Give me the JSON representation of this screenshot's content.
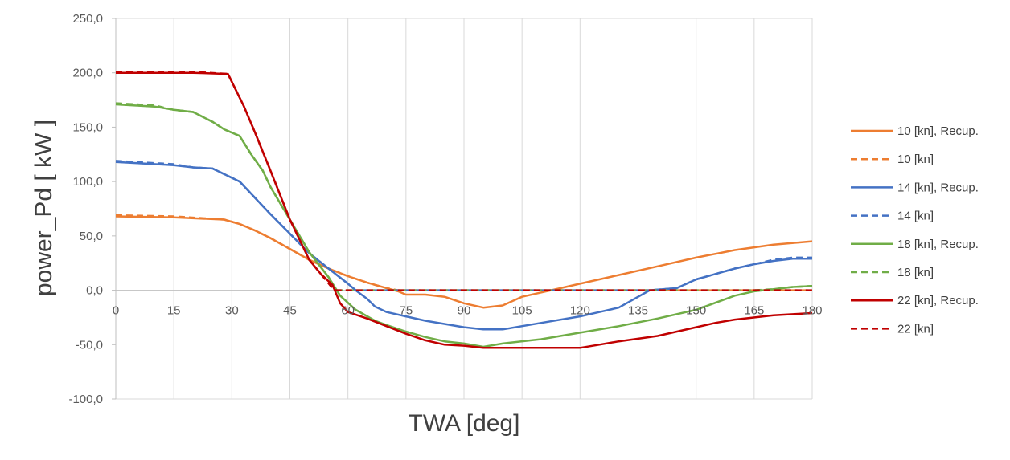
{
  "chart_data": {
    "type": "line",
    "title": "",
    "xlabel": "TWA [deg]",
    "ylabel": "power_Pd [ kW ]",
    "xlim": [
      0,
      180
    ],
    "ylim": [
      -100,
      250
    ],
    "xticks": [
      0,
      15,
      30,
      45,
      60,
      75,
      90,
      105,
      120,
      135,
      150,
      165,
      180
    ],
    "xtick_labels": [
      "0",
      "15",
      "30",
      "45",
      "60",
      "75",
      "90",
      "105",
      "120",
      "135",
      "150",
      "165",
      "180"
    ],
    "yticks": [
      -100,
      -50,
      0,
      50,
      100,
      150,
      200,
      250
    ],
    "ytick_labels": [
      "-100,0",
      "-50,0",
      "0,0",
      "50,0",
      "100,0",
      "150,0",
      "200,0",
      "250,0"
    ],
    "grid": "vertical",
    "legend": "right",
    "series": [
      {
        "name": "10  [kn], Recup.",
        "color": "#ED7D31",
        "dash": "solid",
        "points": [
          [
            0,
            68
          ],
          [
            15,
            67
          ],
          [
            28,
            65
          ],
          [
            32,
            61
          ],
          [
            36,
            55
          ],
          [
            40,
            48
          ],
          [
            45,
            38
          ],
          [
            50,
            28
          ],
          [
            55,
            20
          ],
          [
            60,
            13
          ],
          [
            65,
            7
          ],
          [
            70,
            2
          ],
          [
            73,
            -1
          ],
          [
            75,
            -4
          ],
          [
            80,
            -4
          ],
          [
            85,
            -6
          ],
          [
            90,
            -12
          ],
          [
            95,
            -16
          ],
          [
            100,
            -14
          ],
          [
            105,
            -6
          ],
          [
            110,
            -2
          ],
          [
            115,
            2
          ],
          [
            120,
            6
          ],
          [
            130,
            14
          ],
          [
            140,
            22
          ],
          [
            150,
            30
          ],
          [
            160,
            37
          ],
          [
            170,
            42
          ],
          [
            180,
            45
          ]
        ]
      },
      {
        "name": "10  [kn]",
        "color": "#ED7D31",
        "dash": "dashed",
        "points": [
          [
            0,
            69
          ],
          [
            15,
            68
          ],
          [
            28,
            65
          ],
          [
            32,
            61
          ],
          [
            36,
            55
          ],
          [
            40,
            48
          ],
          [
            45,
            38
          ],
          [
            50,
            28
          ],
          [
            55,
            20
          ],
          [
            60,
            13
          ],
          [
            65,
            7
          ],
          [
            70,
            2
          ],
          [
            73,
            0
          ],
          [
            75,
            0
          ],
          [
            180,
            0
          ]
        ]
      },
      {
        "name": "14  [kn], Recup.",
        "color": "#4472C4",
        "dash": "solid",
        "points": [
          [
            0,
            118
          ],
          [
            15,
            115
          ],
          [
            20,
            113
          ],
          [
            25,
            112
          ],
          [
            32,
            100
          ],
          [
            36,
            85
          ],
          [
            40,
            70
          ],
          [
            45,
            52
          ],
          [
            50,
            34
          ],
          [
            55,
            20
          ],
          [
            60,
            6
          ],
          [
            62,
            0
          ],
          [
            65,
            -8
          ],
          [
            67,
            -15
          ],
          [
            70,
            -20
          ],
          [
            75,
            -24
          ],
          [
            80,
            -28
          ],
          [
            90,
            -34
          ],
          [
            95,
            -36
          ],
          [
            100,
            -36
          ],
          [
            110,
            -30
          ],
          [
            120,
            -24
          ],
          [
            125,
            -20
          ],
          [
            130,
            -16
          ],
          [
            132,
            -12
          ],
          [
            138,
            0
          ],
          [
            145,
            2
          ],
          [
            150,
            10
          ],
          [
            155,
            15
          ],
          [
            160,
            20
          ],
          [
            165,
            24
          ],
          [
            170,
            27
          ],
          [
            175,
            29
          ],
          [
            180,
            29
          ]
        ]
      },
      {
        "name": "14  [kn]",
        "color": "#4472C4",
        "dash": "dashed",
        "points": [
          [
            0,
            119
          ],
          [
            15,
            116
          ],
          [
            20,
            113
          ],
          [
            25,
            112
          ],
          [
            32,
            100
          ],
          [
            36,
            85
          ],
          [
            40,
            70
          ],
          [
            45,
            52
          ],
          [
            50,
            34
          ],
          [
            55,
            20
          ],
          [
            60,
            6
          ],
          [
            62,
            0
          ],
          [
            138,
            0
          ],
          [
            145,
            2
          ],
          [
            150,
            10
          ],
          [
            155,
            15
          ],
          [
            160,
            20
          ],
          [
            165,
            24
          ],
          [
            170,
            28
          ],
          [
            175,
            30
          ],
          [
            180,
            30
          ]
        ]
      },
      {
        "name": "18  [kn], Recup.",
        "color": "#70AD47",
        "dash": "solid",
        "points": [
          [
            0,
            171
          ],
          [
            10,
            169
          ],
          [
            15,
            166
          ],
          [
            20,
            164
          ],
          [
            25,
            155
          ],
          [
            28,
            148
          ],
          [
            32,
            142
          ],
          [
            35,
            125
          ],
          [
            38,
            110
          ],
          [
            40,
            95
          ],
          [
            45,
            65
          ],
          [
            50,
            35
          ],
          [
            55,
            12
          ],
          [
            58,
            -5
          ],
          [
            62,
            -18
          ],
          [
            67,
            -28
          ],
          [
            70,
            -32
          ],
          [
            75,
            -38
          ],
          [
            80,
            -43
          ],
          [
            85,
            -47
          ],
          [
            90,
            -49
          ],
          [
            95,
            -52
          ],
          [
            100,
            -49
          ],
          [
            110,
            -45
          ],
          [
            120,
            -39
          ],
          [
            130,
            -33
          ],
          [
            140,
            -26
          ],
          [
            150,
            -18
          ],
          [
            160,
            -5
          ],
          [
            165,
            -1
          ],
          [
            170,
            1
          ],
          [
            175,
            3
          ],
          [
            180,
            4
          ]
        ]
      },
      {
        "name": "18  [kn]",
        "color": "#70AD47",
        "dash": "dashed",
        "points": [
          [
            0,
            172
          ],
          [
            10,
            170
          ],
          [
            15,
            166
          ],
          [
            20,
            164
          ],
          [
            25,
            155
          ],
          [
            28,
            148
          ],
          [
            32,
            142
          ],
          [
            35,
            125
          ],
          [
            38,
            110
          ],
          [
            40,
            95
          ],
          [
            45,
            65
          ],
          [
            50,
            35
          ],
          [
            55,
            12
          ],
          [
            57,
            0
          ],
          [
            165,
            0
          ],
          [
            170,
            1
          ],
          [
            175,
            3
          ],
          [
            180,
            4
          ]
        ]
      },
      {
        "name": "22  [kn], Recup.",
        "color": "#C00000",
        "dash": "solid",
        "points": [
          [
            0,
            200
          ],
          [
            20,
            200
          ],
          [
            29,
            199
          ],
          [
            33,
            170
          ],
          [
            36,
            145
          ],
          [
            40,
            110
          ],
          [
            45,
            65
          ],
          [
            50,
            28
          ],
          [
            53,
            15
          ],
          [
            56,
            5
          ],
          [
            58,
            -12
          ],
          [
            60,
            -20
          ],
          [
            65,
            -26
          ],
          [
            70,
            -33
          ],
          [
            75,
            -40
          ],
          [
            80,
            -46
          ],
          [
            85,
            -50
          ],
          [
            90,
            -51
          ],
          [
            95,
            -53
          ],
          [
            120,
            -53
          ],
          [
            125,
            -50
          ],
          [
            130,
            -47
          ],
          [
            140,
            -42
          ],
          [
            150,
            -34
          ],
          [
            155,
            -30
          ],
          [
            160,
            -27
          ],
          [
            170,
            -23
          ],
          [
            180,
            -21
          ]
        ]
      },
      {
        "name": "22  [kn]",
        "color": "#C00000",
        "dash": "dashed",
        "points": [
          [
            0,
            201
          ],
          [
            20,
            201
          ],
          [
            29,
            199
          ],
          [
            33,
            170
          ],
          [
            36,
            145
          ],
          [
            40,
            110
          ],
          [
            45,
            65
          ],
          [
            50,
            28
          ],
          [
            53,
            15
          ],
          [
            56,
            2
          ],
          [
            57,
            0
          ],
          [
            180,
            0
          ]
        ]
      }
    ]
  }
}
